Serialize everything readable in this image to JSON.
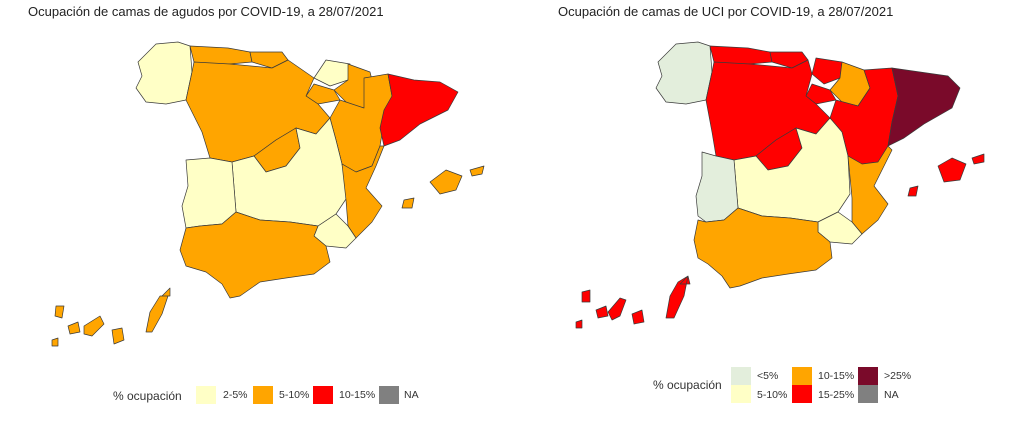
{
  "maps": [
    {
      "title": "Ocupación de camas de agudos por COVID-19, a 28/07/2021",
      "legend": {
        "title": "% ocupación",
        "items": [
          {
            "label": "2-5%",
            "color": "#FFFFC6"
          },
          {
            "label": "5-10%",
            "color": "#FFA500"
          },
          {
            "label": "10-15%",
            "color": "#FF0000"
          },
          {
            "label": "NA",
            "color": "#808080"
          }
        ]
      },
      "regions": {
        "galicia": "2-5%",
        "asturias": "5-10%",
        "cantabria": "5-10%",
        "pais_vasco": "2-5%",
        "navarra": "5-10%",
        "la_rioja": "5-10%",
        "aragon": "5-10%",
        "cataluna": "10-15%",
        "castilla_y_leon": "5-10%",
        "madrid": "5-10%",
        "castilla_la_mancha": "2-5%",
        "extremadura": "2-5%",
        "comunidad_valenciana": "5-10%",
        "murcia": "2-5%",
        "andalucia": "5-10%",
        "baleares": "5-10%",
        "canarias": "5-10%"
      }
    },
    {
      "title": "Ocupación de camas de UCI por COVID-19, a 28/07/2021",
      "legend": {
        "title": "% ocupación",
        "items": [
          {
            "label": "<5%",
            "color": "#E3EEDC"
          },
          {
            "label": "5-10%",
            "color": "#FFFFC6"
          },
          {
            "label": "10-15%",
            "color": "#FFA500"
          },
          {
            "label": "15-25%",
            "color": "#FF0000"
          },
          {
            "label": ">25%",
            "color": "#7A0A2A"
          },
          {
            "label": "NA",
            "color": "#808080"
          }
        ]
      },
      "regions": {
        "galicia": "<5%",
        "asturias": "15-25%",
        "cantabria": "15-25%",
        "pais_vasco": "15-25%",
        "navarra": "10-15%",
        "la_rioja": "15-25%",
        "aragon": "15-25%",
        "cataluna": ">25%",
        "castilla_y_leon": "15-25%",
        "madrid": "15-25%",
        "castilla_la_mancha": "5-10%",
        "extremadura": "<5%",
        "comunidad_valenciana": "10-15%",
        "murcia": "5-10%",
        "andalucia": "10-15%",
        "baleares": "15-25%",
        "canarias": "15-25%"
      }
    }
  ]
}
